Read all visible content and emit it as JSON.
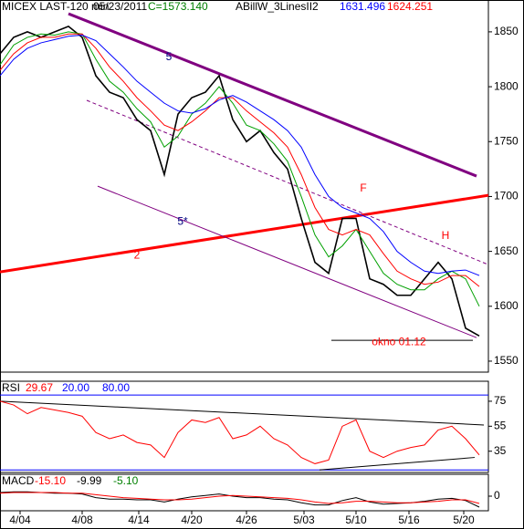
{
  "chart_data": [
    {
      "type": "line",
      "panel": "price",
      "header": [
        {
          "text": "MICEX LAST-120 min",
          "color": "#000000"
        },
        {
          "text": "05/23/2011",
          "color": "#000000"
        },
        {
          "text": "C=1573.140",
          "color": "#008000"
        },
        {
          "text": "ABillW_3LinesII2",
          "color": "#000000"
        },
        {
          "text": "1631.496",
          "color": "#0000ff"
        },
        {
          "text": "1624.251",
          "color": "#ff0000"
        }
      ],
      "x": [
        0,
        3,
        6,
        9,
        12,
        15,
        18,
        21,
        24,
        27,
        30,
        33,
        36,
        39,
        42,
        45,
        48,
        51,
        54,
        57,
        60,
        63,
        66,
        69,
        72,
        75,
        78,
        81,
        84,
        87,
        90,
        93,
        96,
        99,
        102,
        105
      ],
      "series": [
        {
          "name": "MICEX LAST-120 min",
          "color": "#000000",
          "values": [
            1830,
            1845,
            1850,
            1845,
            1850,
            1855,
            1845,
            1810,
            1795,
            1790,
            1770,
            1760,
            1720,
            1775,
            1790,
            1795,
            1810,
            1770,
            1750,
            1760,
            1740,
            1725,
            1680,
            1640,
            1630,
            1680,
            1680,
            1625,
            1620,
            1610,
            1610,
            1625,
            1640,
            1625,
            1580,
            1573
          ]
        },
        {
          "color": "#00a000",
          "values": [
            1820,
            1838,
            1845,
            1848,
            1847,
            1850,
            1848,
            1825,
            1805,
            1795,
            1780,
            1768,
            1745,
            1755,
            1775,
            1785,
            1800,
            1785,
            1765,
            1760,
            1748,
            1732,
            1700,
            1665,
            1645,
            1655,
            1670,
            1650,
            1630,
            1620,
            1615,
            1615,
            1625,
            1632,
            1625,
            1600
          ]
        },
        {
          "color": "#ff0000",
          "values": [
            1815,
            1830,
            1840,
            1845,
            1845,
            1848,
            1848,
            1835,
            1818,
            1805,
            1790,
            1778,
            1765,
            1760,
            1768,
            1778,
            1790,
            1790,
            1778,
            1768,
            1758,
            1745,
            1720,
            1690,
            1670,
            1665,
            1670,
            1665,
            1648,
            1632,
            1625,
            1620,
            1622,
            1628,
            1628,
            1618
          ]
        },
        {
          "color": "#0000ff",
          "values": [
            1810,
            1825,
            1835,
            1840,
            1843,
            1846,
            1847,
            1842,
            1830,
            1818,
            1805,
            1795,
            1785,
            1778,
            1776,
            1780,
            1788,
            1792,
            1786,
            1778,
            1770,
            1760,
            1745,
            1720,
            1700,
            1690,
            1685,
            1680,
            1668,
            1650,
            1640,
            1632,
            1630,
            1632,
            1633,
            1628
          ]
        }
      ],
      "lines": [
        {
          "x": [
            15,
            104.4
          ],
          "y": [
            1866.5,
            1718.6
          ],
          "color": "#800080",
          "width": 3,
          "dash": false
        },
        {
          "x": [
            0,
            107
          ],
          "y": [
            1631.3,
            1701.1
          ],
          "color": "#ff0000",
          "width": 3,
          "dash": false
        },
        {
          "x": [
            21.4,
            104.4
          ],
          "y": [
            1709.4,
            1571.4
          ],
          "color": "#800080",
          "width": 1,
          "dash": false
        },
        {
          "x": [
            19,
            107
          ],
          "y": [
            1787.6,
            1637.9
          ],
          "color": "#800080",
          "width": 1,
          "dash": true
        },
        {
          "x": [
            72.6,
            103.6
          ],
          "y": [
            1569,
            1569
          ],
          "color": "#000000",
          "width": 1,
          "dash": false
        }
      ],
      "annotations": [
        {
          "text": "5",
          "x": 37,
          "y": 1827,
          "color": "#000080"
        },
        {
          "text": "5*",
          "x": 40,
          "y": 1677,
          "color": "#000080"
        },
        {
          "text": "2",
          "x": 30,
          "y": 1646,
          "color": "#ff0000"
        },
        {
          "text": "F",
          "x": 79.6,
          "y": 1707,
          "color": "#ff0000"
        },
        {
          "text": "H",
          "x": 97.6,
          "y": 1664,
          "color": "#ff0000"
        },
        {
          "text": "okno 01.12",
          "x": 87.4,
          "y": 1567,
          "color": "#ff0000"
        }
      ],
      "xlim": [
        0,
        107
      ],
      "ylim": [
        1540,
        1879
      ],
      "yticks": [
        1550,
        1600,
        1650,
        1700,
        1750,
        1800,
        1850
      ]
    },
    {
      "type": "line",
      "panel": "rsi",
      "header": [
        {
          "text": "RSI",
          "color": "#000000"
        },
        {
          "text": "29.67",
          "color": "#ff0000"
        },
        {
          "text": "20.00",
          "color": "#0000ff"
        },
        {
          "text": "80.00",
          "color": "#0000ff"
        }
      ],
      "x": [
        0,
        3,
        6,
        9,
        12,
        15,
        18,
        21,
        24,
        27,
        30,
        33,
        36,
        39,
        42,
        45,
        48,
        51,
        54,
        57,
        60,
        63,
        66,
        69,
        72,
        75,
        78,
        81,
        84,
        87,
        90,
        93,
        96,
        99,
        102,
        105
      ],
      "series": [
        {
          "name": "RSI",
          "color": "#ff0000",
          "values": [
            75,
            72,
            65,
            70,
            68,
            66,
            63,
            50,
            45,
            48,
            42,
            40,
            30,
            50,
            60,
            58,
            62,
            45,
            48,
            55,
            45,
            40,
            30,
            25,
            28,
            55,
            60,
            35,
            30,
            35,
            38,
            40,
            52,
            55,
            45,
            32
          ]
        }
      ],
      "lines": [
        {
          "x": [
            0,
            107
          ],
          "y": [
            80,
            80
          ],
          "color": "#0000ff",
          "width": 1,
          "dash": false
        },
        {
          "x": [
            0,
            107
          ],
          "y": [
            20,
            20
          ],
          "color": "#0000ff",
          "width": 1,
          "dash": false
        },
        {
          "x": [
            0,
            106
          ],
          "y": [
            75,
            56
          ],
          "color": "#000000",
          "width": 1,
          "dash": false
        },
        {
          "x": [
            70,
            104
          ],
          "y": [
            20,
            30
          ],
          "color": "#000000",
          "width": 1,
          "dash": false
        }
      ],
      "xlim": [
        0,
        107
      ],
      "ylim": [
        18,
        91
      ],
      "yticks": [
        35,
        55,
        75
      ]
    },
    {
      "type": "line",
      "panel": "macd",
      "header": [
        {
          "text": "MACD",
          "color": "#000000"
        },
        {
          "text": "-15.10",
          "color": "#ff0000"
        },
        {
          "text": "-9.99",
          "color": "#000000"
        },
        {
          "text": "-5.10",
          "color": "#008000"
        }
      ],
      "x": [
        0,
        3,
        6,
        9,
        12,
        15,
        18,
        21,
        24,
        27,
        30,
        33,
        36,
        39,
        42,
        45,
        48,
        51,
        54,
        57,
        60,
        63,
        66,
        69,
        72,
        75,
        78,
        81,
        84,
        87,
        90,
        93,
        96,
        99,
        102,
        105
      ],
      "series": [
        {
          "name": "MACD",
          "color": "#000000",
          "values": [
            5,
            6,
            6,
            5,
            4,
            4,
            3,
            -2,
            -4,
            -4,
            -5,
            -5,
            -8,
            -4,
            -1,
            1,
            3,
            0,
            -2,
            -2,
            -4,
            -5,
            -9,
            -12,
            -12,
            -6,
            -2,
            -8,
            -11,
            -10,
            -9,
            -7,
            -4,
            -3,
            -6,
            -15
          ]
        },
        {
          "color": "#ff0000",
          "values": [
            4,
            5,
            5,
            5,
            5,
            4,
            4,
            2,
            0,
            -2,
            -3,
            -4,
            -5,
            -5,
            -4,
            -2,
            0,
            1,
            0,
            -1,
            -2,
            -3,
            -5,
            -8,
            -10,
            -9,
            -7,
            -7,
            -8,
            -9,
            -9,
            -8,
            -7,
            -5,
            -5,
            -10
          ]
        }
      ],
      "xlim": [
        0,
        107
      ],
      "ylim": [
        -20,
        30
      ],
      "yticks": [
        0
      ],
      "xticks": [
        {
          "value": 4.4,
          "label": "4/04"
        },
        {
          "value": 18,
          "label": "4/08"
        },
        {
          "value": 30.4,
          "label": "4/14"
        },
        {
          "value": 42,
          "label": "4/20"
        },
        {
          "value": 54,
          "label": "4/26"
        },
        {
          "value": 66.6,
          "label": "5/03"
        },
        {
          "value": 78,
          "label": "5/10"
        },
        {
          "value": 89.6,
          "label": "5/16"
        },
        {
          "value": 101.6,
          "label": "5/20"
        }
      ]
    }
  ]
}
